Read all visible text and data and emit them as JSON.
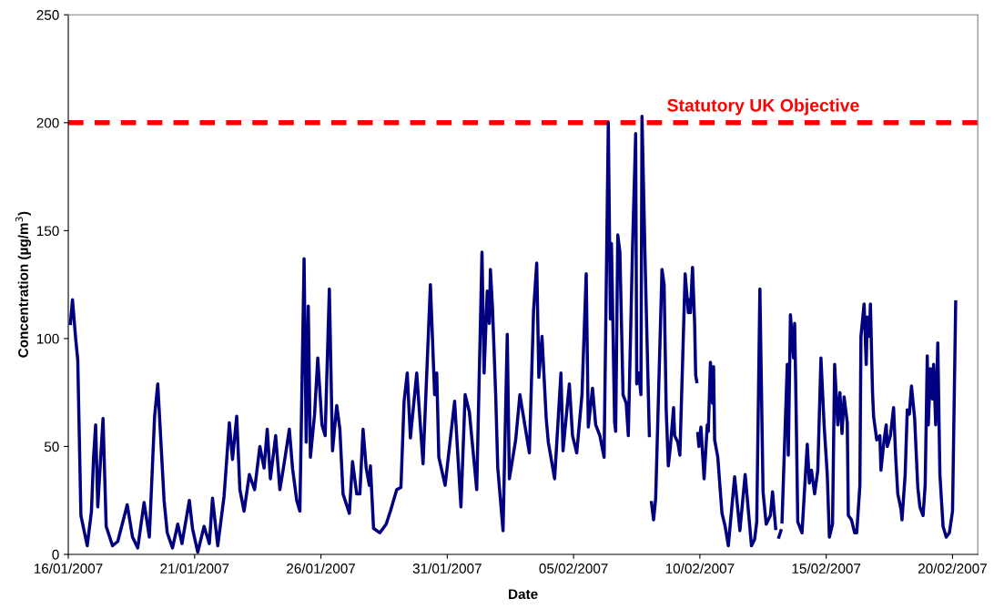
{
  "chart_data": {
    "type": "line",
    "xlabel": "Date",
    "ylabel": "Concentration (µg/m$^{3}$)",
    "x": [
      "2007-01-16T02:00",
      "2007-01-16T04:00",
      "2007-01-16T07:00",
      "2007-01-16T09:00",
      "2007-01-16T12:00",
      "2007-01-16T18:00",
      "2007-01-16T22:00",
      "2007-01-17T00:00",
      "2007-01-17T02:00",
      "2007-01-17T04:00",
      "2007-01-17T09:00",
      "2007-01-17T12:00",
      "2007-01-17T18:00",
      "2007-01-17T23:00",
      "2007-01-18T08:00",
      "2007-01-18T13:00",
      "2007-01-18T18:00",
      "2007-01-19T00:00",
      "2007-01-19T05:00",
      "2007-01-19T10:00",
      "2007-01-19T13:00",
      "2007-01-19T19:00",
      "2007-01-19T22:00",
      "2007-01-20T03:00",
      "2007-01-20T08:00",
      "2007-01-20T12:00",
      "2007-01-20T19:00",
      "2007-01-20T22:00",
      "2007-01-21T03:00",
      "2007-01-21T09:00",
      "2007-01-21T14:00",
      "2007-01-21T17:00",
      "2007-01-21T22:00",
      "2007-01-22T04:00",
      "2007-01-22T09:00",
      "2007-01-22T12:00",
      "2007-01-22T16:00",
      "2007-01-22T19:00",
      "2007-01-22T23:00",
      "2007-01-23T04:00",
      "2007-01-23T09:00",
      "2007-01-23T14:00",
      "2007-01-23T18:00",
      "2007-01-23T21:00",
      "2007-01-24T00:00",
      "2007-01-24T05:00",
      "2007-01-24T09:00",
      "2007-01-24T13:00",
      "2007-01-24T18:00",
      "2007-01-24T21:00",
      "2007-01-25T01:00",
      "2007-01-25T04:00",
      "2007-01-25T08:00",
      "2007-01-25T10:00",
      "2007-01-25T12:00",
      "2007-01-25T14:00",
      "2007-01-25T18:00",
      "2007-01-25T21:00",
      "2007-01-26T01:00",
      "2007-01-26T04:00",
      "2007-01-26T08:00",
      "2007-01-26T11:00",
      "2007-01-26T15:00",
      "2007-01-26T18:00",
      "2007-01-26T21:00",
      "2007-01-27T03:00",
      "2007-01-27T06:00",
      "2007-01-27T10:00",
      "2007-01-27T13:00",
      "2007-01-27T16:00",
      "2007-01-27T19:00",
      "2007-01-27T22:00",
      "2007-01-27T23:00",
      "2007-01-28T02:00",
      "2007-01-28T08:00",
      "2007-01-28T14:00",
      "2007-01-28T18:00",
      "2007-01-29T00:00",
      "2007-01-29T04:00",
      "2007-01-29T07:00",
      "2007-01-29T10:00",
      "2007-01-29T13:00",
      "2007-01-29T19:00",
      "2007-01-30T01:00",
      "2007-01-30T08:00",
      "2007-01-30T12:00",
      "2007-01-30T14:00",
      "2007-01-30T16:00",
      "2007-01-30T22:00",
      "2007-01-31T07:00",
      "2007-01-31T13:00",
      "2007-01-31T17:00",
      "2007-01-31T21:00",
      "2007-02-01T04:00",
      "2007-02-01T09:00",
      "2007-02-01T11:00",
      "2007-02-01T14:00",
      "2007-02-01T16:00",
      "2007-02-01T17:00",
      "2007-02-01T19:00",
      "2007-02-01T22:00",
      "2007-02-02T00:00",
      "2007-02-02T05:00",
      "2007-02-02T09:00",
      "2007-02-02T11:00",
      "2007-02-02T17:00",
      "2007-02-02T21:00",
      "2007-02-03T06:00",
      "2007-02-03T10:00",
      "2007-02-03T13:00",
      "2007-02-03T15:00",
      "2007-02-03T18:00",
      "2007-02-03T22:00",
      "2007-02-04T00:00",
      "2007-02-04T06:00",
      "2007-02-04T12:00",
      "2007-02-04T14:00",
      "2007-02-04T20:00",
      "2007-02-04T23:00",
      "2007-02-05T03:00",
      "2007-02-05T08:00",
      "2007-02-05T12:00",
      "2007-02-05T14:00",
      "2007-02-05T18:00",
      "2007-02-05T21:00",
      "2007-02-06T01:00",
      "2007-02-06T05:00",
      "2007-02-06T09:00",
      "2007-02-06T11:00",
      "2007-02-06T12:00",
      "2007-02-06T15:00",
      "2007-02-06T16:00",
      "2007-02-06T18:00",
      "2007-02-06T20:00",
      "2007-02-06T23:00",
      "2007-02-07T02:00",
      "2007-02-07T04:00",
      "2007-02-07T08:00",
      "2007-02-07T11:00",
      "2007-02-07T12:00",
      "2007-02-07T14:00",
      "2007-02-07T16:00",
      "2007-02-07T17:00",
      "2007-02-07T20:00",
      "2007-02-08T00:00",
      "2007-02-08T01:00",
      "2007-02-08T02:00",
      "2007-02-08T04:00",
      "2007-02-08T06:00",
      "2007-02-08T12:00",
      "2007-02-08T14:00",
      "2007-02-08T16:00",
      "2007-02-08T18:00",
      "2007-02-08T20:00",
      "2007-02-08T23:00",
      "2007-02-09T00:00",
      "2007-02-09T03:00",
      "2007-02-09T05:00",
      "2007-02-09T10:00",
      "2007-02-09T13:00",
      "2007-02-09T14:00",
      "2007-02-09T15:00",
      "2007-02-09T17:00",
      "2007-02-09T19:00",
      "2007-02-09T20:00",
      "2007-02-09T21:00",
      "2007-02-09T21:30",
      "2007-02-09T22:00",
      "2007-02-09T23:00",
      "2007-02-10T01:00",
      "2007-02-10T04:00",
      "2007-02-10T07:00",
      "2007-02-10T08:00",
      "2007-02-10T10:00",
      "2007-02-10T12:00",
      "2007-02-10T13:00",
      "2007-02-10T14:00",
      "2007-02-10T17:00",
      "2007-02-10T21:00",
      "2007-02-11T00:00",
      "2007-02-11T03:00",
      "2007-02-11T09:00",
      "2007-02-11T14:00",
      "2007-02-11T19:00",
      "2007-02-12T01:00",
      "2007-02-12T04:00",
      "2007-02-12T06:00",
      "2007-02-12T09:00",
      "2007-02-12T12:00",
      "2007-02-12T15:00",
      "2007-02-12T19:00",
      "2007-02-12T21:00",
      "2007-02-13T00:00",
      "2007-02-13T01:00",
      "2007-02-13T03:00",
      "2007-02-13T05:00",
      "2007-02-13T05:30",
      "2007-02-13T06:00",
      "2007-02-13T11:00",
      "2007-02-13T12:00",
      "2007-02-13T14:00",
      "2007-02-13T17:00",
      "2007-02-13T18:00",
      "2007-02-13T19:00",
      "2007-02-13T21:00",
      "2007-02-14T01:00",
      "2007-02-14T06:00",
      "2007-02-14T08:00",
      "2007-02-14T10:00",
      "2007-02-14T13:00",
      "2007-02-14T16:00",
      "2007-02-14T19:00",
      "2007-02-14T22:00",
      "2007-02-15T01:00",
      "2007-02-15T03:00",
      "2007-02-15T06:00",
      "2007-02-15T08:00",
      "2007-02-15T11:00",
      "2007-02-15T13:00",
      "2007-02-15T15:00",
      "2007-02-15T17:00",
      "2007-02-15T20:00",
      "2007-02-15T21:00",
      "2007-02-16T00:00",
      "2007-02-16T03:00",
      "2007-02-16T05:00",
      "2007-02-16T08:00",
      "2007-02-16T09:00",
      "2007-02-16T12:00",
      "2007-02-16T14:00",
      "2007-02-16T15:00",
      "2007-02-16T17:00",
      "2007-02-16T18:00",
      "2007-02-16T20:00",
      "2007-02-16T21:00",
      "2007-02-17T00:00",
      "2007-02-17T03:00",
      "2007-02-17T04:00",
      "2007-02-17T07:00",
      "2007-02-17T09:00",
      "2007-02-17T10:00",
      "2007-02-17T13:00",
      "2007-02-17T16:00",
      "2007-02-17T18:00",
      "2007-02-17T20:00",
      "2007-02-17T23:00",
      "2007-02-18T00:00",
      "2007-02-18T03:00",
      "2007-02-18T05:00",
      "2007-02-18T07:00",
      "2007-02-18T09:00",
      "2007-02-18T12:00",
      "2007-02-18T15:00",
      "2007-02-18T17:00",
      "2007-02-18T20:00",
      "2007-02-18T22:00",
      "2007-02-19T00:00",
      "2007-02-19T01:00",
      "2007-02-19T03:00",
      "2007-02-19T05:00",
      "2007-02-19T06:00",
      "2007-02-19T08:00",
      "2007-02-19T10:00",
      "2007-02-19T12:00",
      "2007-02-19T15:00",
      "2007-02-19T18:00",
      "2007-02-19T21:00",
      "2007-02-20T00:00",
      "2007-02-20T03:00"
    ],
    "series": [
      {
        "color": "#000080",
        "values": [
          107,
          118,
          100,
          90,
          18,
          4,
          20,
          45,
          60,
          22,
          63,
          13,
          4,
          6,
          23,
          8,
          3,
          24,
          8,
          64,
          79,
          25,
          10,
          3,
          14,
          5,
          25,
          12,
          1,
          13,
          5,
          26,
          4,
          27,
          61,
          44,
          64,
          30,
          20,
          37,
          30,
          50,
          40,
          58,
          35,
          55,
          30,
          42,
          58,
          40,
          25,
          20,
          137,
          52,
          115,
          45,
          65,
          91,
          60,
          55,
          123,
          48,
          69,
          58,
          28,
          19,
          43,
          28,
          28,
          58,
          40,
          32,
          41,
          12,
          10,
          14,
          20,
          30,
          31,
          71,
          84,
          54,
          84,
          42,
          125,
          74,
          84,
          45,
          32,
          71,
          22,
          74,
          66,
          30,
          140,
          84,
          122,
          107,
          132,
          114,
          74,
          40,
          11,
          102,
          35,
          53,
          74,
          47,
          113,
          135,
          82,
          101,
          63,
          52,
          35,
          84,
          48,
          79,
          55,
          47,
          74,
          130,
          59,
          77,
          60,
          55,
          45,
          200,
          109,
          144,
          61,
          57,
          148,
          140,
          74,
          70,
          55,
          142,
          195,
          79,
          84,
          74,
          203,
          135,
          55,
          null,
          24,
          16,
          26,
          132,
          125,
          67,
          41,
          50,
          68,
          55,
          52,
          46,
          130,
          112,
          118,
          112,
          133,
          107,
          83,
          80,
          null,
          56,
          50,
          59,
          35,
          60,
          57,
          89,
          70,
          87,
          53,
          45,
          19,
          13,
          4,
          36,
          11,
          37,
          4,
          7,
          15,
          123,
          29,
          14,
          18,
          29,
          12,
          null,
          8,
          11,
          null,
          15,
          88,
          46,
          111,
          91,
          107,
          80,
          15,
          10,
          51,
          33,
          39,
          28,
          39,
          91,
          60,
          37,
          8,
          14,
          88,
          60,
          75,
          56,
          73,
          61,
          18,
          16,
          10,
          10,
          32,
          101,
          116,
          88,
          110,
          101,
          116,
          75,
          64,
          53,
          55,
          39,
          53,
          60,
          50,
          55,
          68,
          45,
          28,
          21,
          16,
          37,
          67,
          65,
          78,
          63,
          31,
          22,
          18,
          32,
          92,
          60,
          86,
          72,
          88,
          60,
          98,
          37,
          13,
          8,
          10,
          20,
          117
        ]
      }
    ],
    "xlim": [
      "2007-01-16",
      "2007-02-21"
    ],
    "xticks": [
      {
        "value": "2007-01-16",
        "label": "16/01/2007"
      },
      {
        "value": "2007-01-21",
        "label": "21/01/2007"
      },
      {
        "value": "2007-01-26",
        "label": "26/01/2007"
      },
      {
        "value": "2007-01-31",
        "label": "31/01/2007"
      },
      {
        "value": "2007-02-05",
        "label": "05/02/2007"
      },
      {
        "value": "2007-02-10",
        "label": "10/02/2007"
      },
      {
        "value": "2007-02-15",
        "label": "15/02/2007"
      },
      {
        "value": "2007-02-20",
        "label": "20/02/2007"
      }
    ],
    "ylim": [
      0,
      250
    ],
    "yticks": [
      0,
      50,
      100,
      150,
      200,
      250
    ],
    "grid": false,
    "legend": false,
    "marker": "none",
    "line_style": "solid",
    "ref_lines": [
      {
        "axis": "y",
        "value": 200,
        "label": "Statutory UK Objective",
        "color": "#ff0000",
        "line_style": "dashed"
      }
    ]
  }
}
